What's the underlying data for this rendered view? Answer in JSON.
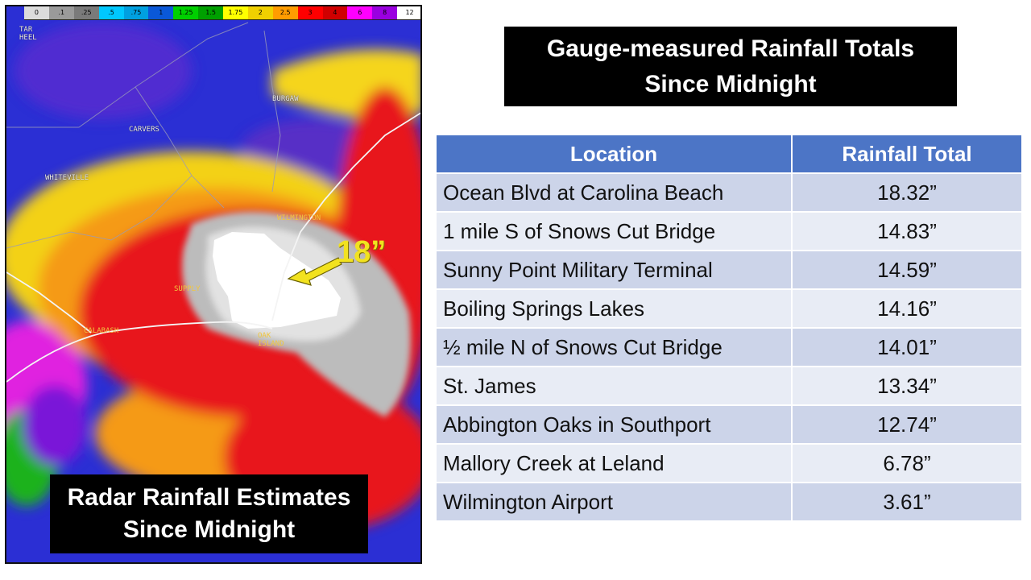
{
  "radar": {
    "colorbar_ticks": [
      "0",
      ".1",
      ".25",
      ".5",
      ".75",
      "1",
      "1.25",
      "1.5",
      "1.75",
      "2",
      "2.5",
      "3",
      "4",
      "6",
      "8",
      "12"
    ],
    "colorbar_colors": [
      "#dcdcdc",
      "#9a9a9a",
      "#7a7a7a",
      "#00c8ff",
      "#00a0e0",
      "#0a58d8",
      "#00d000",
      "#00a000",
      "#ffff00",
      "#f0d000",
      "#ff9c00",
      "#ff0000",
      "#d00000",
      "#ff00ff",
      "#9a00e0",
      "#ffffff"
    ],
    "places": [
      {
        "name": "TAR\nHEEL"
      },
      {
        "name": "CARVERS"
      },
      {
        "name": "BURGAW"
      },
      {
        "name": "WHITEVILLE"
      },
      {
        "name": "WILMINGTON"
      },
      {
        "name": "SUPPLY"
      },
      {
        "name": "CALABASH"
      },
      {
        "name": "OAK\nISLAND"
      }
    ],
    "callout": "18”",
    "caption_line1": "Radar Rainfall Estimates",
    "caption_line2": "Since Midnight"
  },
  "gauge": {
    "title_line1": "Gauge-measured Rainfall Totals",
    "title_line2": "Since Midnight",
    "headers": {
      "location": "Location",
      "total": "Rainfall Total"
    },
    "rows": [
      {
        "location": "Ocean Blvd at Carolina Beach",
        "total": "18.32”"
      },
      {
        "location": "1 mile S of Snows Cut Bridge",
        "total": "14.83”"
      },
      {
        "location": "Sunny Point Military Terminal",
        "total": "14.59”"
      },
      {
        "location": "Boiling Springs Lakes",
        "total": "14.16”"
      },
      {
        "location": "½ mile N of Snows Cut Bridge",
        "total": "14.01”"
      },
      {
        "location": "St. James",
        "total": "13.34”"
      },
      {
        "location": "Abbington Oaks in Southport",
        "total": "12.74”"
      },
      {
        "location": "Mallory Creek at Leland",
        "total": "6.78”"
      },
      {
        "location": "Wilmington Airport",
        "total": "3.61”"
      }
    ]
  }
}
